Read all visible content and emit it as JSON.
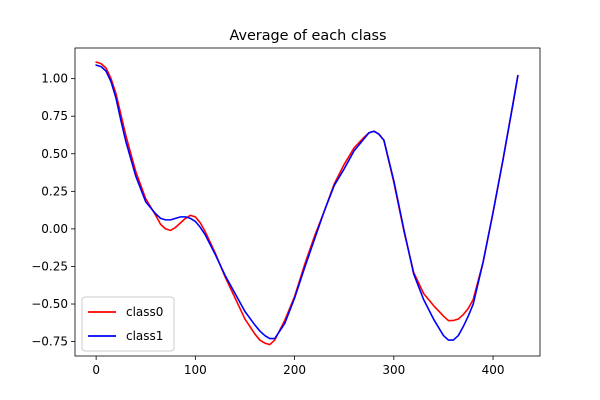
{
  "chart_data": {
    "type": "line",
    "title": "Average of each class",
    "xlabel": "",
    "ylabel": "",
    "xlim": [
      -21.3,
      447.3
    ],
    "ylim": [
      -0.846,
      1.204
    ],
    "x_ticks": [
      0,
      100,
      200,
      300,
      400
    ],
    "x_tick_labels": [
      "0",
      "100",
      "200",
      "300",
      "400"
    ],
    "y_ticks": [
      -0.75,
      -0.5,
      -0.25,
      0.0,
      0.25,
      0.5,
      0.75,
      1.0
    ],
    "y_tick_labels": [
      "−0.75",
      "−0.50",
      "−0.25",
      "0.00",
      "0.25",
      "0.50",
      "0.75",
      "1.00"
    ],
    "grid": false,
    "legend_position": "lower-left",
    "series": [
      {
        "name": "class0",
        "color": "#ff0000",
        "x": [
          0,
          5,
          10,
          15,
          20,
          25,
          30,
          40,
          50,
          60,
          65,
          70,
          75,
          80,
          85,
          90,
          95,
          100,
          105,
          110,
          120,
          130,
          140,
          150,
          160,
          165,
          170,
          175,
          180,
          190,
          200,
          210,
          220,
          230,
          240,
          250,
          260,
          270,
          275,
          280,
          285,
          290,
          300,
          310,
          320,
          330,
          340,
          350,
          355,
          360,
          365,
          370,
          375,
          380,
          390,
          400,
          410,
          420,
          425
        ],
        "y": [
          1.11,
          1.1,
          1.07,
          1.0,
          0.9,
          0.76,
          0.62,
          0.38,
          0.2,
          0.09,
          0.03,
          0.0,
          -0.01,
          0.01,
          0.04,
          0.07,
          0.09,
          0.08,
          0.04,
          -0.02,
          -0.16,
          -0.32,
          -0.46,
          -0.6,
          -0.7,
          -0.74,
          -0.76,
          -0.77,
          -0.74,
          -0.61,
          -0.45,
          -0.24,
          -0.05,
          0.12,
          0.3,
          0.43,
          0.54,
          0.61,
          0.64,
          0.65,
          0.63,
          0.59,
          0.31,
          -0.01,
          -0.29,
          -0.43,
          -0.51,
          -0.58,
          -0.61,
          -0.61,
          -0.6,
          -0.57,
          -0.53,
          -0.47,
          -0.22,
          0.11,
          0.46,
          0.83,
          1.02
        ]
      },
      {
        "name": "class1",
        "color": "#0000ff",
        "x": [
          0,
          5,
          10,
          15,
          20,
          25,
          30,
          40,
          50,
          60,
          65,
          70,
          75,
          80,
          85,
          90,
          95,
          100,
          105,
          110,
          120,
          130,
          140,
          150,
          160,
          165,
          170,
          175,
          180,
          190,
          200,
          210,
          220,
          230,
          240,
          250,
          260,
          270,
          275,
          280,
          285,
          290,
          300,
          310,
          320,
          330,
          340,
          350,
          355,
          360,
          365,
          370,
          375,
          380,
          390,
          400,
          410,
          420,
          425
        ],
        "y": [
          1.09,
          1.08,
          1.05,
          0.98,
          0.87,
          0.72,
          0.58,
          0.35,
          0.18,
          0.1,
          0.07,
          0.06,
          0.06,
          0.07,
          0.08,
          0.08,
          0.07,
          0.05,
          0.01,
          -0.04,
          -0.17,
          -0.31,
          -0.43,
          -0.55,
          -0.64,
          -0.68,
          -0.71,
          -0.73,
          -0.73,
          -0.63,
          -0.46,
          -0.26,
          -0.07,
          0.12,
          0.29,
          0.4,
          0.52,
          0.6,
          0.64,
          0.65,
          0.63,
          0.59,
          0.32,
          0.0,
          -0.3,
          -0.47,
          -0.6,
          -0.71,
          -0.74,
          -0.74,
          -0.71,
          -0.65,
          -0.58,
          -0.5,
          -0.22,
          0.11,
          0.46,
          0.83,
          1.02
        ]
      }
    ]
  }
}
